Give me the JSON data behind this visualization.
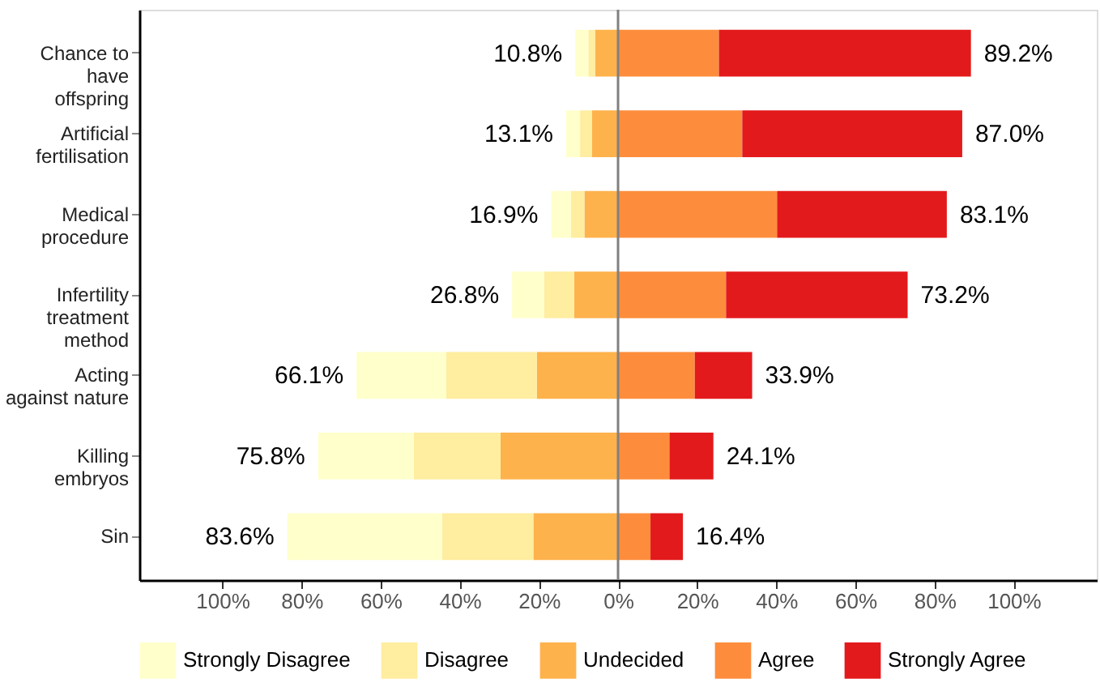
{
  "chart_data": {
    "type": "bar",
    "orientation": "horizontal",
    "stacked": true,
    "categories": [
      "Chance to\nhave\noffspring",
      "Artificial\nfertilisation",
      "Medical\nprocedure",
      "Infertility\ntreatment\nmethod",
      "Acting\nagainst nature",
      "Killing\nembryos",
      "Sin"
    ],
    "series": [
      {
        "name": "Undecided",
        "color": "#feb24c",
        "values": [
          -5.8,
          -6.6,
          -8.5,
          -11.1,
          -20.5,
          -29.7,
          -21.4
        ]
      },
      {
        "name": "Disagree",
        "color": "#ffeda0",
        "values": [
          -1.7,
          -3.0,
          -3.4,
          -7.6,
          -22.9,
          -21.9,
          -23.1
        ]
      },
      {
        "name": "Strongly Disagree",
        "color": "#ffffcc",
        "values": [
          -3.3,
          -3.5,
          -5.0,
          -8.1,
          -22.7,
          -24.2,
          -39.1
        ]
      },
      {
        "name": "Agree",
        "color": "#fd8d3c",
        "values": [
          25.5,
          31.4,
          40.2,
          27.3,
          19.4,
          13.0,
          8.2
        ]
      },
      {
        "name": "Strongly Agree",
        "color": "#e31a1c",
        "values": [
          63.7,
          55.6,
          42.9,
          45.9,
          14.5,
          11.1,
          8.2
        ]
      }
    ],
    "xlim": [
      -121,
      121
    ],
    "xticks": [
      {
        "value": -100,
        "label": "100%"
      },
      {
        "value": -80,
        "label": "80%"
      },
      {
        "value": -60,
        "label": "60%"
      },
      {
        "value": -40,
        "label": "40%"
      },
      {
        "value": -20,
        "label": "20%"
      },
      {
        "value": 0,
        "label": "0%"
      },
      {
        "value": 20,
        "label": "20%"
      },
      {
        "value": 40,
        "label": "40%"
      },
      {
        "value": 60,
        "label": "60%"
      },
      {
        "value": 80,
        "label": "80%"
      },
      {
        "value": 100,
        "label": "100%"
      }
    ],
    "ref_lines": [
      {
        "axis": "x",
        "value": 0,
        "color": "#808080"
      }
    ],
    "annotations": [
      {
        "text": "10.8%",
        "x": -10.8,
        "y": "Chance to\nhave\noffspring"
      },
      {
        "text": "89.2%",
        "x": 89.2,
        "y": "Chance to\nhave\noffspring"
      },
      {
        "text": "13.1%",
        "x": -13.1,
        "y": "Artificial\nfertilisation"
      },
      {
        "text": "87.0%",
        "x": 87.0,
        "y": "Artificial\nfertilisation"
      },
      {
        "text": "16.9%",
        "x": -16.9,
        "y": "Medical\nprocedure"
      },
      {
        "text": "83.1%",
        "x": 83.1,
        "y": "Medical\nprocedure"
      },
      {
        "text": "26.8%",
        "x": -26.8,
        "y": "Infertility\ntreatment\nmethod"
      },
      {
        "text": "73.2%",
        "x": 73.2,
        "y": "Infertility\ntreatment\nmethod"
      },
      {
        "text": "66.1%",
        "x": -66.1,
        "y": "Acting\nagainst nature"
      },
      {
        "text": "33.9%",
        "x": 33.9,
        "y": "Acting\nagainst nature"
      },
      {
        "text": "75.8%",
        "x": -75.8,
        "y": "Killing\nembryos"
      },
      {
        "text": "24.1%",
        "x": 24.1,
        "y": "Killing\nembryos"
      },
      {
        "text": "83.6%",
        "x": -83.6,
        "y": "Sin"
      },
      {
        "text": "16.4%",
        "x": 16.4,
        "y": "Sin"
      }
    ],
    "grid": false,
    "legend": "bottom"
  }
}
